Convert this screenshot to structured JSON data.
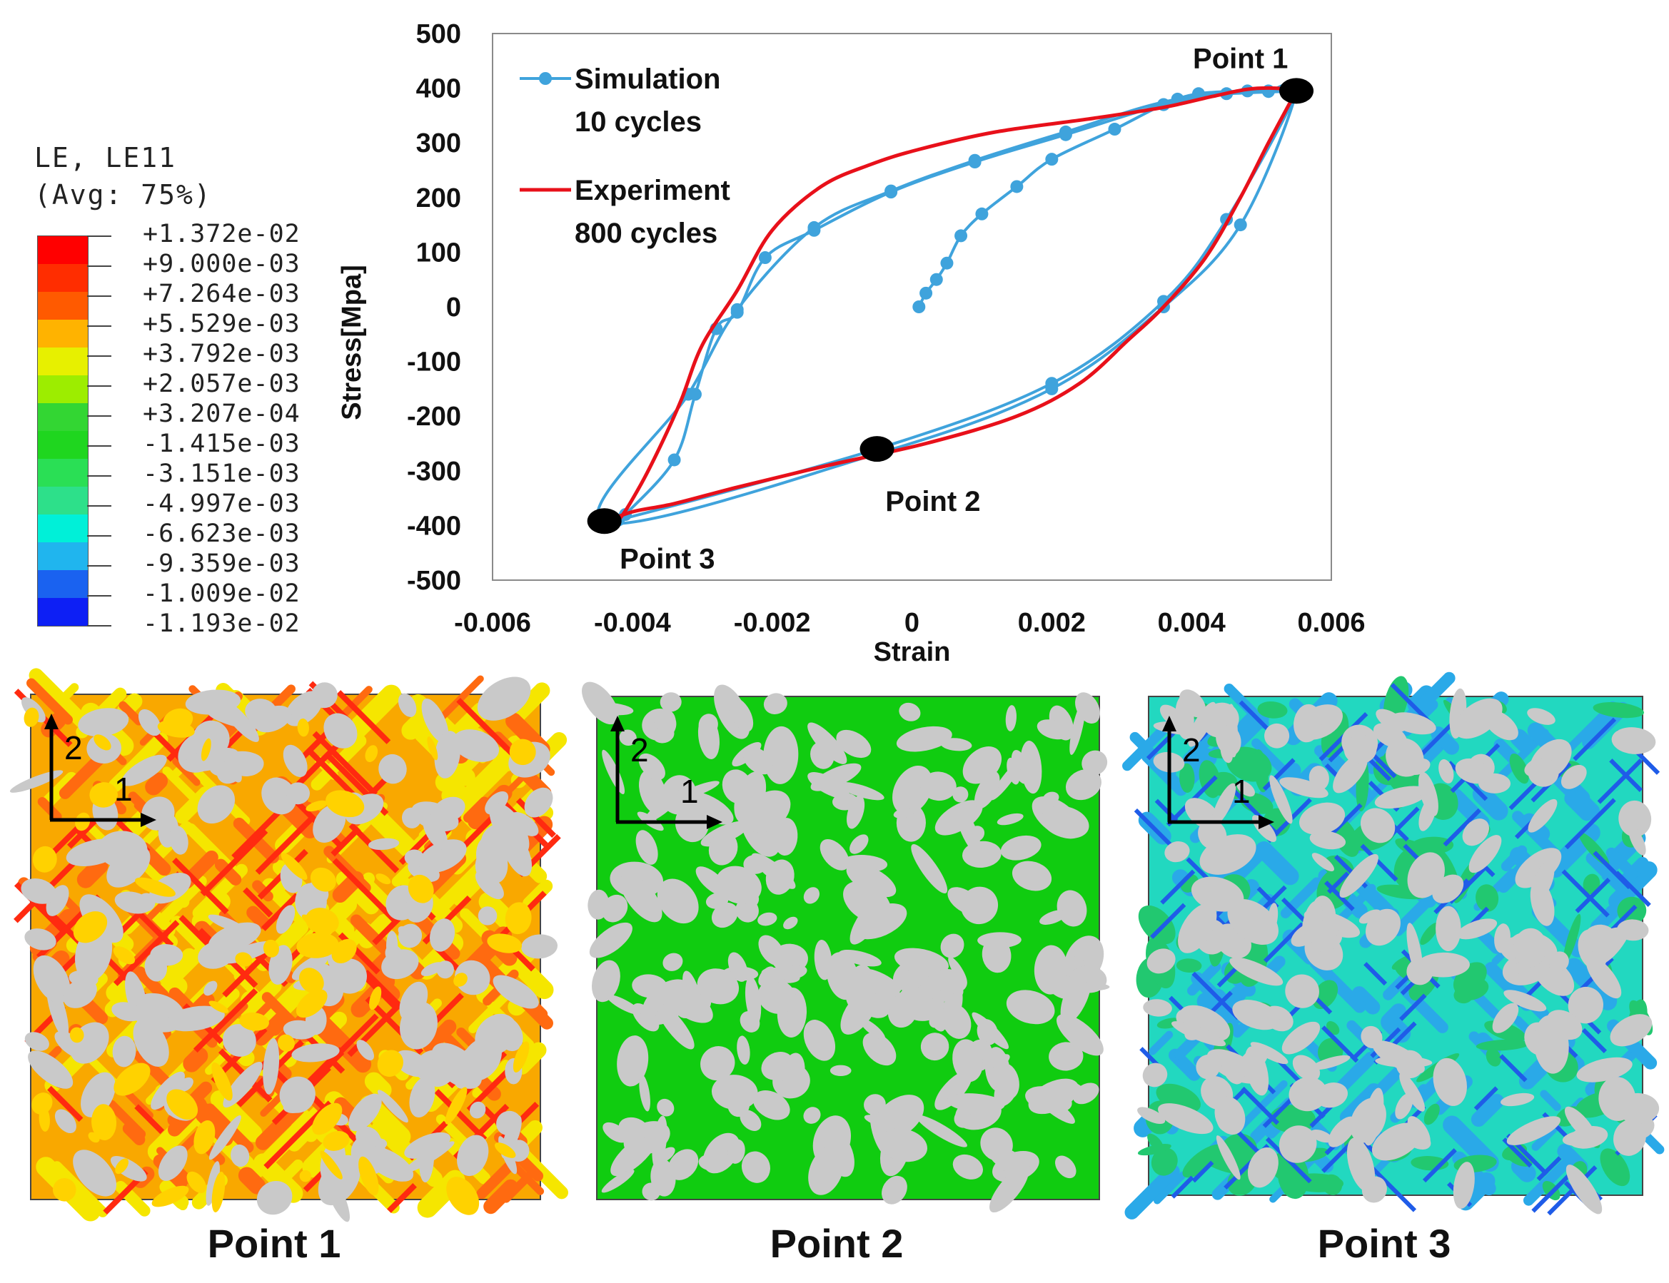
{
  "colors": {
    "simulation": "#3fa3dc",
    "experiment": "#e8101a",
    "gray_phase": "#c9c9c9"
  },
  "legend_bar": {
    "title_line1": "LE, LE11",
    "title_line2": "(Avg: 75%)",
    "labels": [
      "+1.372e-02",
      "+9.000e-03",
      "+7.264e-03",
      "+5.529e-03",
      "+3.792e-03",
      "+2.057e-03",
      "+3.207e-04",
      "-1.415e-03",
      "-3.151e-03",
      "-4.997e-03",
      "-6.623e-03",
      "-9.359e-03",
      "-1.009e-02",
      "-1.193e-02"
    ],
    "colors": [
      "#ff0000",
      "#ff2d00",
      "#ff5a00",
      "#ffb300",
      "#e7f000",
      "#9ded00",
      "#33d633",
      "#1fd61f",
      "#2adf55",
      "#2de08a",
      "#00f0d8",
      "#20b5ee",
      "#1a62f0",
      "#0d1ff5"
    ]
  },
  "chart_data": {
    "type": "line",
    "xlabel": "Strain",
    "ylabel": "Stress[Mpa]",
    "xlim": [
      -0.006,
      0.006
    ],
    "ylim": [
      -500,
      500
    ],
    "xticks": [
      -0.006,
      -0.004,
      -0.002,
      0,
      0.002,
      0.004,
      0.006
    ],
    "xtick_labels": [
      "-0.006",
      "-0.004",
      "-0.002",
      "0",
      "0.002",
      "0.004",
      "0.006"
    ],
    "yticks": [
      500,
      400,
      300,
      200,
      100,
      0,
      -100,
      -200,
      -300,
      -400,
      -500
    ],
    "ytick_labels": [
      "500",
      "400",
      "300",
      "200",
      "100",
      "0",
      "-100",
      "-200",
      "-300",
      "-400",
      "-500"
    ],
    "legend": {
      "placement": "top-left"
    },
    "series": [
      {
        "name": "Simulation",
        "name_line2": "10 cycles",
        "color": "#3fa3dc",
        "markers": true,
        "x": [
          0.0001,
          0.0002,
          0.00035,
          0.0005,
          0.0007,
          0.001,
          0.0015,
          0.002,
          0.0029,
          0.0036,
          0.0041,
          0.0048,
          0.0051,
          0.0055,
          0.0045,
          0.0036,
          0.002,
          -0.0005,
          -0.0042,
          -0.0041,
          -0.0034,
          -0.0031,
          -0.0028,
          -0.0025,
          -0.0021,
          -0.0014,
          -0.0003,
          0.0009,
          0.0022,
          0.0036,
          0.0045,
          0.0051,
          0.0055,
          0.0047,
          0.0036,
          0.002,
          -0.0004,
          -0.0044,
          -0.0032,
          -0.0025,
          -0.0014,
          -0.0003,
          0.0009,
          0.0022,
          0.0038,
          0.0055
        ],
        "y": [
          0,
          25,
          50,
          80,
          130,
          170,
          220,
          270,
          325,
          370,
          390,
          395,
          395,
          395,
          160,
          10,
          -140,
          -260,
          -390,
          -380,
          -280,
          -160,
          -40,
          -10,
          90,
          140,
          210,
          265,
          315,
          370,
          390,
          394,
          395,
          150,
          0,
          -150,
          -265,
          -395,
          -160,
          -5,
          145,
          212,
          268,
          320,
          380,
          395
        ]
      },
      {
        "name": "Experiment",
        "name_line2": "800 cycles",
        "color": "#e8101a",
        "markers": false,
        "x": [
          0.0055,
          0.0052,
          0.0048,
          0.0043,
          0.0036,
          0.0026,
          0.0012,
          0.0001,
          -0.0006,
          -0.0013,
          -0.002,
          -0.0025,
          -0.003,
          -0.0033,
          -0.0036,
          -0.0039,
          -0.0042,
          -0.0044,
          -0.004,
          -0.0034,
          -0.0025,
          -0.0012,
          0.0002,
          0.0015,
          0.0024,
          0.0031,
          0.0036,
          0.0042,
          0.0047,
          0.0051,
          0.0055
        ],
        "y": [
          395,
          400,
          398,
          385,
          365,
          345,
          320,
          288,
          260,
          220,
          140,
          30,
          -70,
          -170,
          -255,
          -330,
          -390,
          -395,
          -375,
          -360,
          -330,
          -290,
          -250,
          -200,
          -140,
          -60,
          0,
          90,
          200,
          300,
          395
        ]
      }
    ],
    "annotations": [
      "Point 1",
      "Point 2",
      "Point 3"
    ]
  },
  "panels": [
    {
      "caption": "Point 1",
      "axis_1": "1",
      "axis_2": "2"
    },
    {
      "caption": "Point 2",
      "axis_1": "1",
      "axis_2": "2"
    },
    {
      "caption": "Point 3",
      "axis_1": "1",
      "axis_2": "2"
    }
  ]
}
